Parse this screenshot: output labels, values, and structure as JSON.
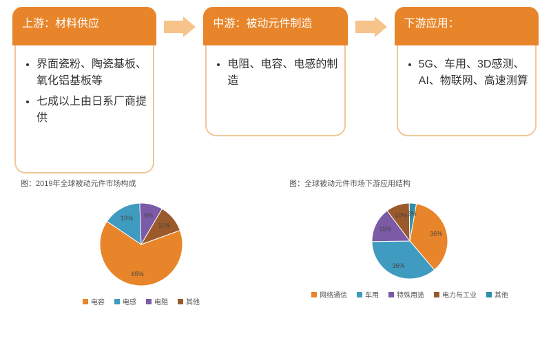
{
  "palette": {
    "orange": "#e8852a",
    "orange_light": "#f6c38a",
    "blue": "#3f9bbf",
    "teal": "#2f8ea8",
    "purple": "#7b5aa6",
    "brown": "#9b5a2b",
    "brown2": "#a36a3a",
    "grey": "#f0d3b0"
  },
  "flow": {
    "cards": [
      {
        "title": "上游：材料供应",
        "items": [
          "界面瓷粉、陶瓷基板、氧化铝基板等",
          "七成以上由日系厂商提供"
        ]
      },
      {
        "title": "中游：被动元件制造",
        "items": [
          "电阻、电容、电感的制造"
        ]
      },
      {
        "title": "下游应用：",
        "items": [
          "5G、车用、3D感测、AI、物联网、高速测算"
        ]
      }
    ]
  },
  "chart1": {
    "title": "图：2019年全球被动元件市场构成",
    "type": "pie",
    "radius": 60,
    "slices": [
      {
        "label": "电容",
        "value": 65,
        "color": "#e8852a"
      },
      {
        "label": "电感",
        "value": 15,
        "color": "#3f9bbf"
      },
      {
        "label": "电阻",
        "value": 9,
        "color": "#7b5aa6"
      },
      {
        "label": "其他",
        "value": 11,
        "color": "#9b5a2b"
      }
    ],
    "labels_fontsize": 9
  },
  "chart2": {
    "title": "图：全球被动元件市场下游应用结构",
    "type": "pie",
    "radius": 55,
    "slices": [
      {
        "label": "网络通信",
        "value": 36,
        "color": "#e8852a"
      },
      {
        "label": "车用",
        "value": 36,
        "color": "#3f9bbf"
      },
      {
        "label": "特殊用途",
        "value": 15,
        "color": "#7b5aa6"
      },
      {
        "label": "电力与工业",
        "value": 10,
        "color": "#9b5a2b"
      },
      {
        "label": "其他",
        "value": 3,
        "color": "#2f8ea8"
      }
    ],
    "labels_fontsize": 9
  }
}
